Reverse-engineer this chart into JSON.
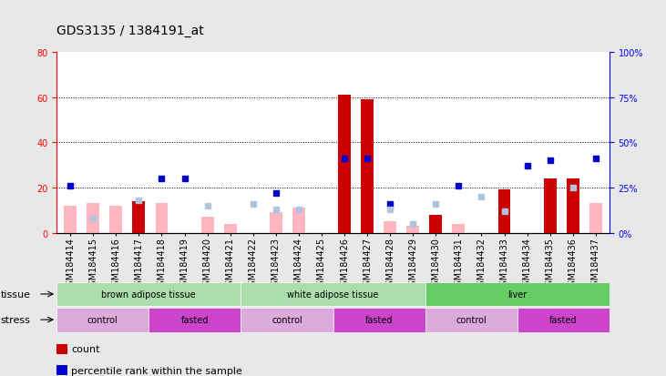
{
  "title": "GDS3135 / 1384191_at",
  "samples": [
    "GSM184414",
    "GSM184415",
    "GSM184416",
    "GSM184417",
    "GSM184418",
    "GSM184419",
    "GSM184420",
    "GSM184421",
    "GSM184422",
    "GSM184423",
    "GSM184424",
    "GSM184425",
    "GSM184426",
    "GSM184427",
    "GSM184428",
    "GSM184429",
    "GSM184430",
    "GSM184431",
    "GSM184432",
    "GSM184433",
    "GSM184434",
    "GSM184435",
    "GSM184436",
    "GSM184437"
  ],
  "count_values": [
    0,
    0,
    0,
    14,
    0,
    0,
    0,
    0,
    0,
    0,
    0,
    0,
    61,
    59,
    0,
    0,
    8,
    0,
    0,
    19,
    0,
    24,
    24,
    0
  ],
  "rank_values": [
    26,
    0,
    0,
    0,
    30,
    30,
    0,
    0,
    0,
    22,
    0,
    0,
    41,
    41,
    16,
    0,
    0,
    26,
    0,
    0,
    37,
    40,
    0,
    41
  ],
  "absent_value": [
    12,
    13,
    12,
    0,
    13,
    0,
    7,
    4,
    0,
    9,
    11,
    0,
    0,
    0,
    5,
    3,
    0,
    4,
    0,
    0,
    0,
    0,
    0,
    13
  ],
  "absent_rank": [
    0,
    8,
    0,
    18,
    0,
    0,
    15,
    0,
    16,
    13,
    13,
    0,
    0,
    0,
    13,
    5,
    16,
    0,
    20,
    12,
    0,
    0,
    25,
    0
  ],
  "tissue_groups": [
    {
      "label": "brown adipose tissue",
      "start": 0,
      "end": 8,
      "color": "#aaddaa"
    },
    {
      "label": "white adipose tissue",
      "start": 8,
      "end": 16,
      "color": "#aaddaa"
    },
    {
      "label": "liver",
      "start": 16,
      "end": 24,
      "color": "#66cc66"
    }
  ],
  "stress_groups": [
    {
      "label": "control",
      "start": 0,
      "end": 4,
      "color": "#ddaadd"
    },
    {
      "label": "fasted",
      "start": 4,
      "end": 8,
      "color": "#cc44cc"
    },
    {
      "label": "control",
      "start": 8,
      "end": 12,
      "color": "#ddaadd"
    },
    {
      "label": "fasted",
      "start": 12,
      "end": 16,
      "color": "#cc44cc"
    },
    {
      "label": "control",
      "start": 16,
      "end": 20,
      "color": "#ddaadd"
    },
    {
      "label": "fasted",
      "start": 20,
      "end": 24,
      "color": "#cc44cc"
    }
  ],
  "ylim_left": [
    0,
    80
  ],
  "ylim_right": [
    0,
    100
  ],
  "yticks_left": [
    0,
    20,
    40,
    60,
    80
  ],
  "yticks_right": [
    0,
    25,
    50,
    75,
    100
  ],
  "yticklabels_right": [
    "0%",
    "25%",
    "50%",
    "75%",
    "100%"
  ],
  "color_count": "#cc0000",
  "color_rank": "#0000cc",
  "color_absent_value": "#ffb6c1",
  "color_absent_rank": "#b0c4de",
  "bg_color": "#e8e8e8",
  "plot_bg": "#ffffff",
  "title_fontsize": 10,
  "tick_fontsize": 7,
  "annot_fontsize": 8
}
